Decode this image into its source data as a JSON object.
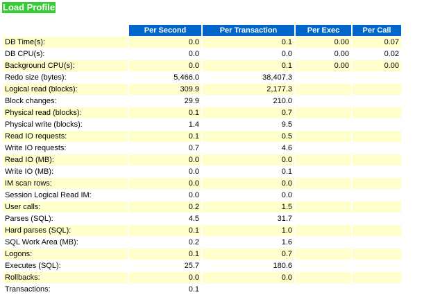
{
  "title": "Load Profile",
  "headers": [
    "",
    "Per Second",
    "Per Transaction",
    "Per Exec",
    "Per Call"
  ],
  "rows": [
    {
      "label": "DB Time(s):",
      "per_second": "0.0",
      "per_transaction": "0.1",
      "per_exec": "0.00",
      "per_call": "0.07"
    },
    {
      "label": "DB CPU(s):",
      "per_second": "0.0",
      "per_transaction": "0.0",
      "per_exec": "0.00",
      "per_call": "0.02"
    },
    {
      "label": "Background CPU(s):",
      "per_second": "0.0",
      "per_transaction": "0.1",
      "per_exec": "0.00",
      "per_call": "0.00"
    },
    {
      "label": "Redo size (bytes):",
      "per_second": "5,466.0",
      "per_transaction": "38,407.3",
      "per_exec": "",
      "per_call": ""
    },
    {
      "label": "Logical read (blocks):",
      "per_second": "309.9",
      "per_transaction": "2,177.3",
      "per_exec": "",
      "per_call": ""
    },
    {
      "label": "Block changes:",
      "per_second": "29.9",
      "per_transaction": "210.0",
      "per_exec": "",
      "per_call": ""
    },
    {
      "label": "Physical read (blocks):",
      "per_second": "0.1",
      "per_transaction": "0.7",
      "per_exec": "",
      "per_call": ""
    },
    {
      "label": "Physical write (blocks):",
      "per_second": "1.4",
      "per_transaction": "9.5",
      "per_exec": "",
      "per_call": ""
    },
    {
      "label": "Read IO requests:",
      "per_second": "0.1",
      "per_transaction": "0.5",
      "per_exec": "",
      "per_call": ""
    },
    {
      "label": "Write IO requests:",
      "per_second": "0.7",
      "per_transaction": "4.6",
      "per_exec": "",
      "per_call": ""
    },
    {
      "label": "Read IO (MB):",
      "per_second": "0.0",
      "per_transaction": "0.0",
      "per_exec": "",
      "per_call": ""
    },
    {
      "label": "Write IO (MB):",
      "per_second": "0.0",
      "per_transaction": "0.1",
      "per_exec": "",
      "per_call": ""
    },
    {
      "label": "IM scan rows:",
      "per_second": "0.0",
      "per_transaction": "0.0",
      "per_exec": "",
      "per_call": ""
    },
    {
      "label": "Session Logical Read IM:",
      "per_second": "0.0",
      "per_transaction": "0.0",
      "per_exec": "",
      "per_call": ""
    },
    {
      "label": "User calls:",
      "per_second": "0.2",
      "per_transaction": "1.5",
      "per_exec": "",
      "per_call": ""
    },
    {
      "label": "Parses (SQL):",
      "per_second": "4.5",
      "per_transaction": "31.7",
      "per_exec": "",
      "per_call": ""
    },
    {
      "label": "Hard parses (SQL):",
      "per_second": "0.1",
      "per_transaction": "1.0",
      "per_exec": "",
      "per_call": ""
    },
    {
      "label": "SQL Work Area (MB):",
      "per_second": "0.2",
      "per_transaction": "1.6",
      "per_exec": "",
      "per_call": ""
    },
    {
      "label": "Logons:",
      "per_second": "0.1",
      "per_transaction": "0.7",
      "per_exec": "",
      "per_call": ""
    },
    {
      "label": "Executes (SQL):",
      "per_second": "25.7",
      "per_transaction": "180.6",
      "per_exec": "",
      "per_call": ""
    },
    {
      "label": "Rollbacks:",
      "per_second": "0.0",
      "per_transaction": "0.0",
      "per_exec": "",
      "per_call": ""
    },
    {
      "label": "Transactions:",
      "per_second": "0.1",
      "per_transaction": "",
      "per_exec": "",
      "per_call": ""
    }
  ],
  "colors": {
    "title_bg": "#33cc33",
    "header_bg": "#0066cc",
    "alt_row_bg": "#ffffcc"
  }
}
